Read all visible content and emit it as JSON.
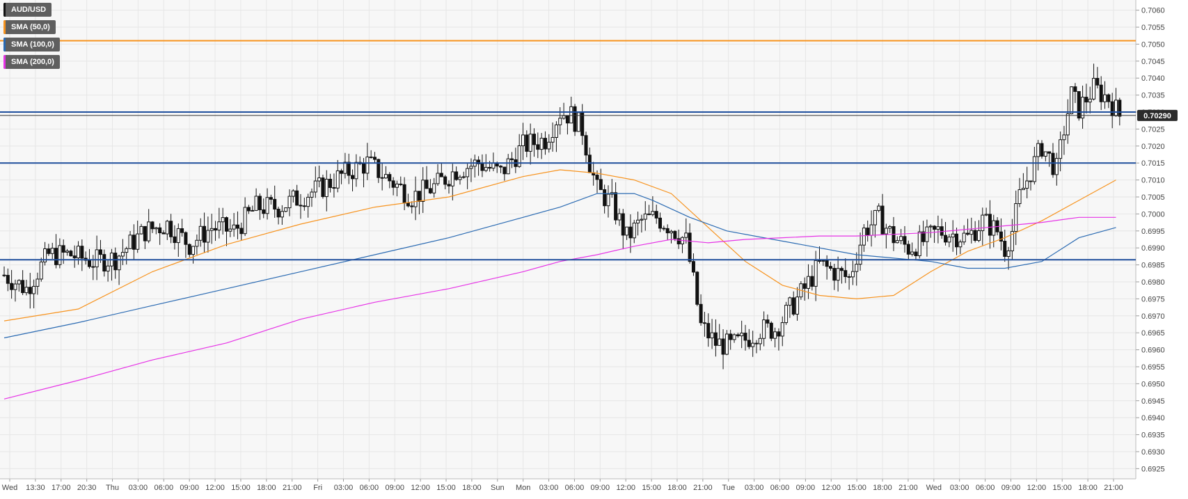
{
  "legend": [
    {
      "label": "AUD/USD",
      "color": "#111111"
    },
    {
      "label": "SMA (50,0)",
      "color": "#f7931e"
    },
    {
      "label": "SMA (100,0)",
      "color": "#2a6ab2"
    },
    {
      "label": "SMA (200,0)",
      "color": "#e632e6"
    }
  ],
  "price_label": "0.70290",
  "chart_data": {
    "type": "candlestick",
    "symbol": "AUD/USD",
    "ylim": [
      0.6922,
      0.7063
    ],
    "yticks": [
      "0.7060",
      "0.7055",
      "0.7050",
      "0.7045",
      "0.7040",
      "0.7035",
      "0.7030",
      "0.7025",
      "0.7020",
      "0.7015",
      "0.7010",
      "0.7005",
      "0.7000",
      "0.6995",
      "0.6990",
      "0.6985",
      "0.6980",
      "0.6975",
      "0.6970",
      "0.6965",
      "0.6960",
      "0.6955",
      "0.6950",
      "0.6945",
      "0.6940",
      "0.6935",
      "0.6930",
      "0.6925"
    ],
    "xticks": [
      "Wed",
      "13:30",
      "17:00",
      "20:30",
      "Thu",
      "03:00",
      "06:00",
      "09:00",
      "12:00",
      "15:00",
      "18:00",
      "21:00",
      "Fri",
      "03:00",
      "06:00",
      "09:00",
      "12:00",
      "15:00",
      "18:00",
      "Sun",
      "Mon",
      "03:00",
      "06:00",
      "09:00",
      "12:00",
      "15:00",
      "18:00",
      "21:00",
      "Tue",
      "03:00",
      "06:00",
      "09:00",
      "12:00",
      "15:00",
      "18:00",
      "21:00",
      "Wed",
      "03:00",
      "06:00",
      "09:00",
      "12:00",
      "15:00",
      "18:00",
      "21:00"
    ],
    "current_price": 0.7029,
    "horizontal_levels": [
      {
        "value": 0.7051,
        "color": "#f7931e"
      },
      {
        "value": 0.703,
        "color": "#1f4e9c"
      },
      {
        "value": 0.7015,
        "color": "#1f4e9c"
      },
      {
        "value": 0.69865,
        "color": "#1f4e9c"
      }
    ],
    "close_path": [
      [
        0,
        0.6982
      ],
      [
        6,
        0.6978
      ],
      [
        12,
        0.6988
      ],
      [
        18,
        0.6988
      ],
      [
        24,
        0.6986
      ],
      [
        30,
        0.6987
      ],
      [
        38,
        0.6995
      ],
      [
        44,
        0.6997
      ],
      [
        50,
        0.6991
      ],
      [
        56,
        0.6996
      ],
      [
        62,
        0.6995
      ],
      [
        68,
        0.7002
      ],
      [
        74,
        0.7002
      ],
      [
        80,
        0.7005
      ],
      [
        86,
        0.7008
      ],
      [
        92,
        0.7012
      ],
      [
        98,
        0.7015
      ],
      [
        104,
        0.701
      ],
      [
        110,
        0.7005
      ],
      [
        116,
        0.7008
      ],
      [
        122,
        0.7013
      ],
      [
        128,
        0.7015
      ],
      [
        134,
        0.7012
      ],
      [
        140,
        0.702
      ],
      [
        146,
        0.7022
      ],
      [
        150,
        0.703
      ],
      [
        153,
        0.7029
      ],
      [
        156,
        0.7025
      ],
      [
        158,
        0.7015
      ],
      [
        160,
        0.7007
      ],
      [
        164,
        0.7003
      ],
      [
        168,
        0.6993
      ],
      [
        172,
        0.6998
      ],
      [
        176,
        0.6999
      ],
      [
        180,
        0.6996
      ],
      [
        184,
        0.6992
      ],
      [
        186,
        0.698
      ],
      [
        188,
        0.6967
      ],
      [
        192,
        0.6962
      ],
      [
        196,
        0.6961
      ],
      [
        200,
        0.6963
      ],
      [
        204,
        0.6966
      ],
      [
        208,
        0.6966
      ],
      [
        212,
        0.6972
      ],
      [
        216,
        0.6978
      ],
      [
        220,
        0.6985
      ],
      [
        224,
        0.6983
      ],
      [
        228,
        0.6981
      ],
      [
        232,
        0.6995
      ],
      [
        236,
        0.6999
      ],
      [
        240,
        0.6993
      ],
      [
        244,
        0.699
      ],
      [
        248,
        0.6992
      ],
      [
        252,
        0.6995
      ],
      [
        256,
        0.6994
      ],
      [
        260,
        0.6993
      ],
      [
        264,
        0.6998
      ],
      [
        268,
        0.6995
      ],
      [
        270,
        0.699
      ],
      [
        272,
        0.6995
      ],
      [
        274,
        0.7005
      ],
      [
        276,
        0.701
      ],
      [
        280,
        0.702
      ],
      [
        284,
        0.7013
      ],
      [
        286,
        0.7025
      ],
      [
        288,
        0.7035
      ],
      [
        290,
        0.7031
      ],
      [
        294,
        0.7037
      ],
      [
        298,
        0.7034
      ],
      [
        301,
        0.7029
      ]
    ],
    "sma_50": [
      [
        0,
        0.69685
      ],
      [
        20,
        0.6972
      ],
      [
        40,
        0.6983
      ],
      [
        60,
        0.6991
      ],
      [
        80,
        0.6997
      ],
      [
        100,
        0.7002
      ],
      [
        120,
        0.7005
      ],
      [
        140,
        0.7011
      ],
      [
        150,
        0.7013
      ],
      [
        160,
        0.7012
      ],
      [
        170,
        0.701
      ],
      [
        180,
        0.7006
      ],
      [
        190,
        0.6996
      ],
      [
        200,
        0.6986
      ],
      [
        210,
        0.6979
      ],
      [
        220,
        0.6976
      ],
      [
        230,
        0.6975
      ],
      [
        240,
        0.6976
      ],
      [
        250,
        0.6983
      ],
      [
        260,
        0.6989
      ],
      [
        270,
        0.6993
      ],
      [
        280,
        0.6998
      ],
      [
        290,
        0.7004
      ],
      [
        300,
        0.701
      ]
    ],
    "sma_100": [
      [
        0,
        0.69635
      ],
      [
        20,
        0.6968
      ],
      [
        40,
        0.6973
      ],
      [
        60,
        0.6978
      ],
      [
        80,
        0.6983
      ],
      [
        100,
        0.6988
      ],
      [
        120,
        0.6993
      ],
      [
        140,
        0.6999
      ],
      [
        150,
        0.7002
      ],
      [
        160,
        0.7006
      ],
      [
        170,
        0.7006
      ],
      [
        175,
        0.7004
      ],
      [
        185,
        0.6999
      ],
      [
        195,
        0.6995
      ],
      [
        205,
        0.6993
      ],
      [
        215,
        0.6991
      ],
      [
        230,
        0.6988
      ],
      [
        240,
        0.6987
      ],
      [
        250,
        0.6986
      ],
      [
        260,
        0.6984
      ],
      [
        270,
        0.6984
      ],
      [
        280,
        0.6986
      ],
      [
        290,
        0.6993
      ],
      [
        300,
        0.6996
      ]
    ],
    "sma_200": [
      [
        0,
        0.69455
      ],
      [
        20,
        0.6951
      ],
      [
        40,
        0.6957
      ],
      [
        60,
        0.6962
      ],
      [
        80,
        0.6969
      ],
      [
        100,
        0.6974
      ],
      [
        120,
        0.6978
      ],
      [
        140,
        0.6983
      ],
      [
        150,
        0.6986
      ],
      [
        160,
        0.6988
      ],
      [
        170,
        0.69905
      ],
      [
        180,
        0.69925
      ],
      [
        190,
        0.69915
      ],
      [
        200,
        0.69925
      ],
      [
        210,
        0.6993
      ],
      [
        220,
        0.69935
      ],
      [
        230,
        0.69935
      ],
      [
        240,
        0.6994
      ],
      [
        250,
        0.69945
      ],
      [
        260,
        0.69955
      ],
      [
        270,
        0.69965
      ],
      [
        280,
        0.69975
      ],
      [
        290,
        0.6999
      ],
      [
        300,
        0.6999
      ]
    ]
  }
}
